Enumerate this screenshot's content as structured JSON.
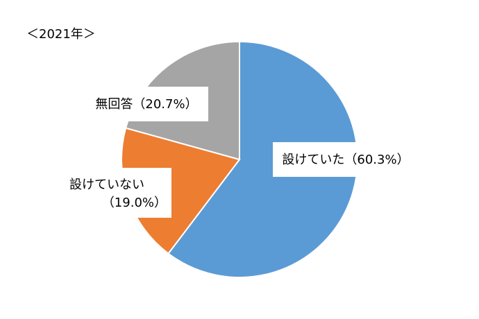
{
  "chart_data": {
    "type": "pie",
    "title": "＜2021年＞",
    "categories": [
      "設けていた",
      "設けていない",
      "無回答"
    ],
    "values": [
      60.3,
      19.0,
      20.7
    ],
    "value_labels": [
      "（60.3%）",
      "（19.0%）",
      "（20.7%）"
    ],
    "colors": [
      "#5b9bd5",
      "#ed7d31",
      "#a5a5a5"
    ]
  }
}
